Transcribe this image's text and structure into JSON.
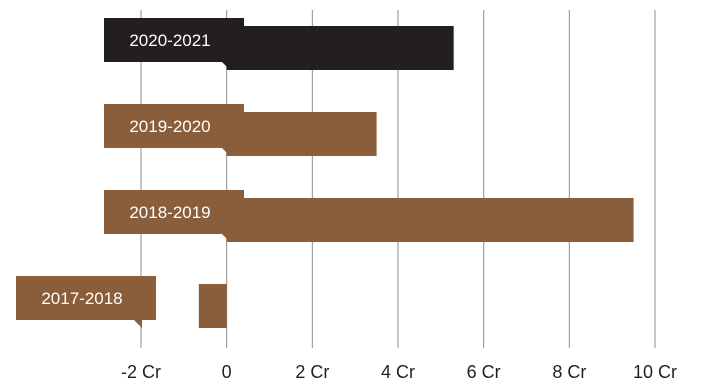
{
  "chart_data": {
    "type": "bar",
    "orientation": "horizontal",
    "categories": [
      "2020-2021",
      "2019-2020",
      "2018-2019",
      "2017-2018"
    ],
    "values": [
      5.3,
      3.5,
      9.5,
      -0.65
    ],
    "value_unit": "Cr",
    "xlim": [
      -2,
      10
    ],
    "xticks": [
      -2,
      0,
      2,
      4,
      6,
      8,
      10
    ],
    "xtick_labels": [
      "-2 Cr",
      "0",
      "2 Cr",
      "4 Cr",
      "6 Cr",
      "8 Cr",
      "10 Cr"
    ],
    "grid": "vertical",
    "title": "",
    "xlabel": "",
    "ylabel": "",
    "bar_colors": [
      "#231f20",
      "#8a5e3b",
      "#8a5e3b",
      "#8a5e3b"
    ],
    "label_box_colors": [
      "#231f20",
      "#8a5e3b",
      "#8a5e3b",
      "#8a5e3b"
    ],
    "label_text_color": "#ffffff",
    "grid_color": "#8c8c8c",
    "tick_text_color": "#231f20"
  }
}
